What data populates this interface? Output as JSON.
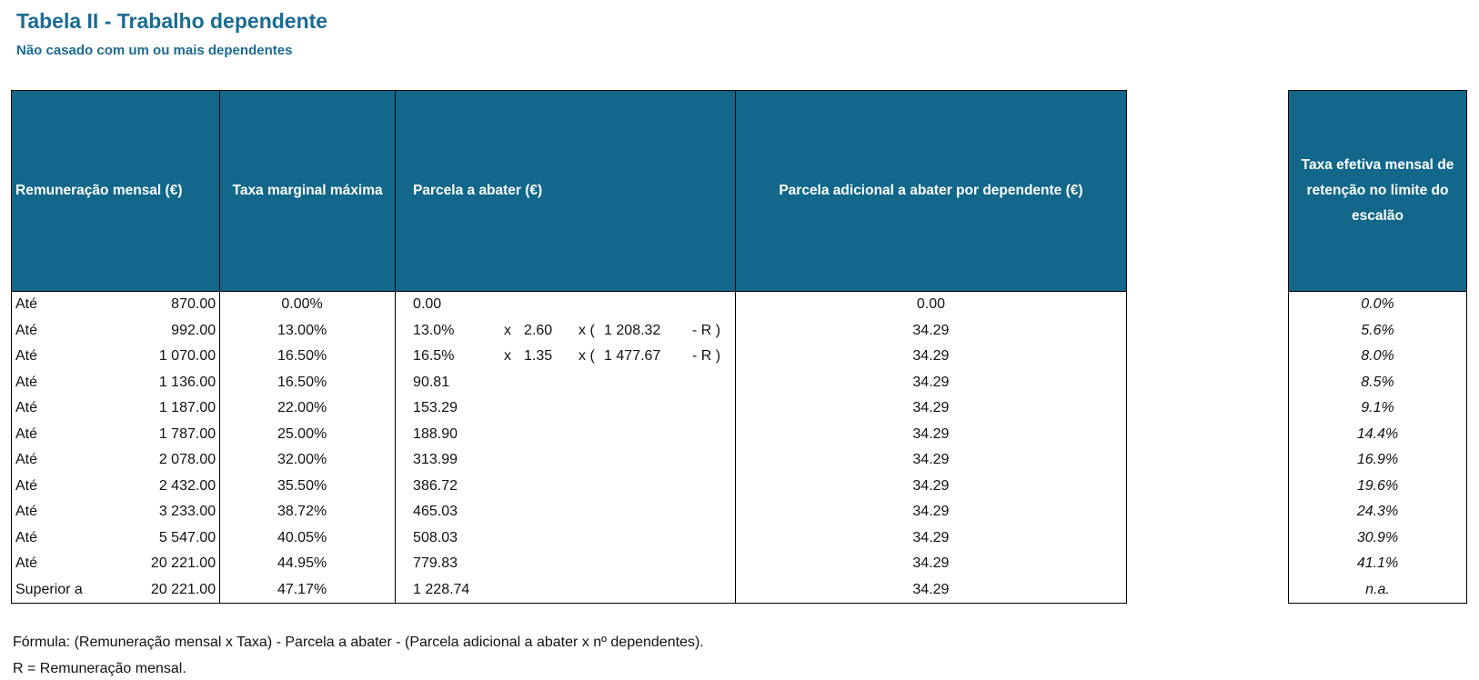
{
  "title": "Tabela II - Trabalho dependente",
  "subtitle": "Não casado com um ou mais dependentes",
  "headers": {
    "remuneracao": "Remuneração mensal (€)",
    "taxa": "Taxa marginal máxima",
    "parcela": "Parcela a abater (€)",
    "adicional": "Parcela adicional a abater por dependente (€)",
    "taxa_efetiva": "Taxa efetiva mensal de retenção no limite do escalão"
  },
  "rows": [
    {
      "label": "Até",
      "rem": "870.00",
      "taxa": "0.00%",
      "parcela": "0.00",
      "formula": null,
      "adicional": "0.00",
      "efetiva": "0.0%"
    },
    {
      "label": "Até",
      "rem": "992.00",
      "taxa": "13.00%",
      "parcela": "13.0%",
      "formula": {
        "x1": "x",
        "mult": "2.60",
        "x2": "x (",
        "num": "1 208.32",
        "r": "- R )"
      },
      "adicional": "34.29",
      "efetiva": "5.6%"
    },
    {
      "label": "Até",
      "rem": "1 070.00",
      "taxa": "16.50%",
      "parcela": "16.5%",
      "formula": {
        "x1": "x",
        "mult": "1.35",
        "x2": "x (",
        "num": "1 477.67",
        "r": "- R )"
      },
      "adicional": "34.29",
      "efetiva": "8.0%"
    },
    {
      "label": "Até",
      "rem": "1 136.00",
      "taxa": "16.50%",
      "parcela": "90.81",
      "formula": null,
      "adicional": "34.29",
      "efetiva": "8.5%"
    },
    {
      "label": "Até",
      "rem": "1 187.00",
      "taxa": "22.00%",
      "parcela": "153.29",
      "formula": null,
      "adicional": "34.29",
      "efetiva": "9.1%"
    },
    {
      "label": "Até",
      "rem": "1 787.00",
      "taxa": "25.00%",
      "parcela": "188.90",
      "formula": null,
      "adicional": "34.29",
      "efetiva": "14.4%"
    },
    {
      "label": "Até",
      "rem": "2 078.00",
      "taxa": "32.00%",
      "parcela": "313.99",
      "formula": null,
      "adicional": "34.29",
      "efetiva": "16.9%"
    },
    {
      "label": "Até",
      "rem": "2 432.00",
      "taxa": "35.50%",
      "parcela": "386.72",
      "formula": null,
      "adicional": "34.29",
      "efetiva": "19.6%"
    },
    {
      "label": "Até",
      "rem": "3 233.00",
      "taxa": "38.72%",
      "parcela": "465.03",
      "formula": null,
      "adicional": "34.29",
      "efetiva": "24.3%"
    },
    {
      "label": "Até",
      "rem": "5 547.00",
      "taxa": "40.05%",
      "parcela": "508.03",
      "formula": null,
      "adicional": "34.29",
      "efetiva": "30.9%"
    },
    {
      "label": "Até",
      "rem": "20 221.00",
      "taxa": "44.95%",
      "parcela": "779.83",
      "formula": null,
      "adicional": "34.29",
      "efetiva": "41.1%"
    },
    {
      "label": "Superior a",
      "rem": "20 221.00",
      "taxa": "47.17%",
      "parcela": "1 228.74",
      "formula": null,
      "adicional": "34.29",
      "efetiva": "n.a."
    }
  ],
  "notes": {
    "formula": "Fórmula: (Remuneração mensal x Taxa) - Parcela a abater - (Parcela adicional a abater x nº dependentes).",
    "r": "R = Remuneração mensal."
  }
}
